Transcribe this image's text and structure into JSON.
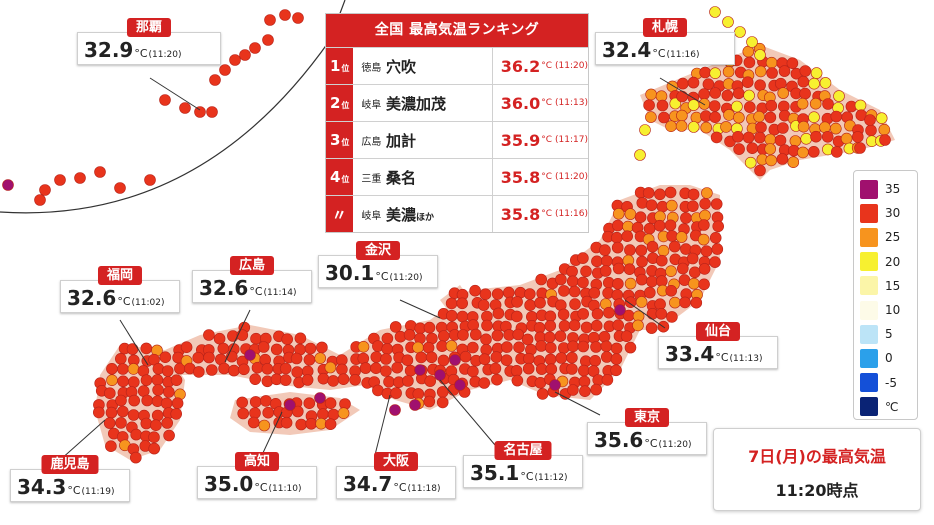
{
  "colors": {
    "c35": "#a0106e",
    "c30": "#e8341c",
    "c25": "#f7941e",
    "c20": "#f7f030",
    "c15": "#fbf5a8",
    "c10": "#fdfbe8",
    "c5": "#bce4f7",
    "c0": "#2ba0ea",
    "cm5": "#1450d8",
    "cold": "#0a2375",
    "accent": "#d42222"
  },
  "ranking": {
    "title": "全国 最高気温ランキング",
    "rows": [
      {
        "rank": "1",
        "suffix": "位",
        "pref": "徳島",
        "city": "穴吹",
        "city_small": "",
        "temp": "36.2",
        "unit": "°C",
        "time": "(11:20)"
      },
      {
        "rank": "2",
        "suffix": "位",
        "pref": "岐阜",
        "city": "美濃加茂",
        "city_small": "",
        "temp": "36.0",
        "unit": "°C",
        "time": "(11:13)"
      },
      {
        "rank": "3",
        "suffix": "位",
        "pref": "広島",
        "city": "加計",
        "city_small": "",
        "temp": "35.9",
        "unit": "°C",
        "time": "(11:17)"
      },
      {
        "rank": "4",
        "suffix": "位",
        "pref": "三重",
        "city": "桑名",
        "city_small": "",
        "temp": "35.8",
        "unit": "°C",
        "time": "(11:20)"
      },
      {
        "rank": "〃",
        "suffix": "",
        "pref": "岐阜",
        "city": "美濃",
        "city_small": "ほか",
        "temp": "35.8",
        "unit": "°C",
        "time": "(11:16)"
      }
    ]
  },
  "cities": {
    "naha": {
      "name": "那覇",
      "temp": "32.9",
      "unit": "°C",
      "time": "(11:20)"
    },
    "sapporo": {
      "name": "札幌",
      "temp": "32.4",
      "unit": "°C",
      "time": "(11:16)"
    },
    "kanazawa": {
      "name": "金沢",
      "temp": "30.1",
      "unit": "°C",
      "time": "(11:20)"
    },
    "fukuoka": {
      "name": "福岡",
      "temp": "32.6",
      "unit": "°C",
      "time": "(11:02)"
    },
    "hiroshima": {
      "name": "広島",
      "temp": "32.6",
      "unit": "°C",
      "time": "(11:14)"
    },
    "sendai": {
      "name": "仙台",
      "temp": "33.4",
      "unit": "°C",
      "time": "(11:13)"
    },
    "tokyo": {
      "name": "東京",
      "temp": "35.6",
      "unit": "°C",
      "time": "(11:20)"
    },
    "nagoya": {
      "name": "名古屋",
      "temp": "35.1",
      "unit": "°C",
      "time": "(11:12)"
    },
    "osaka": {
      "name": "大阪",
      "temp": "34.7",
      "unit": "°C",
      "time": "(11:18)"
    },
    "kochi": {
      "name": "高知",
      "temp": "35.0",
      "unit": "°C",
      "time": "(11:10)"
    },
    "kagoshima": {
      "name": "鹿児島",
      "temp": "34.3",
      "unit": "°C",
      "time": "(11:19)"
    }
  },
  "legend": [
    {
      "label": "35",
      "color": "#a0106e"
    },
    {
      "label": "30",
      "color": "#e8341c"
    },
    {
      "label": "25",
      "color": "#f7941e"
    },
    {
      "label": "20",
      "color": "#f7f030"
    },
    {
      "label": "15",
      "color": "#fbf5a8"
    },
    {
      "label": "10",
      "color": "#fdfbe8"
    },
    {
      "label": "5",
      "color": "#bce4f7"
    },
    {
      "label": "0",
      "color": "#2ba0ea"
    },
    {
      "label": "-5",
      "color": "#1450d8"
    },
    {
      "label": "℃",
      "color": "#0a2375"
    }
  ],
  "title": {
    "main": "7日(月)の最高気温",
    "sub": "11:20時点"
  }
}
